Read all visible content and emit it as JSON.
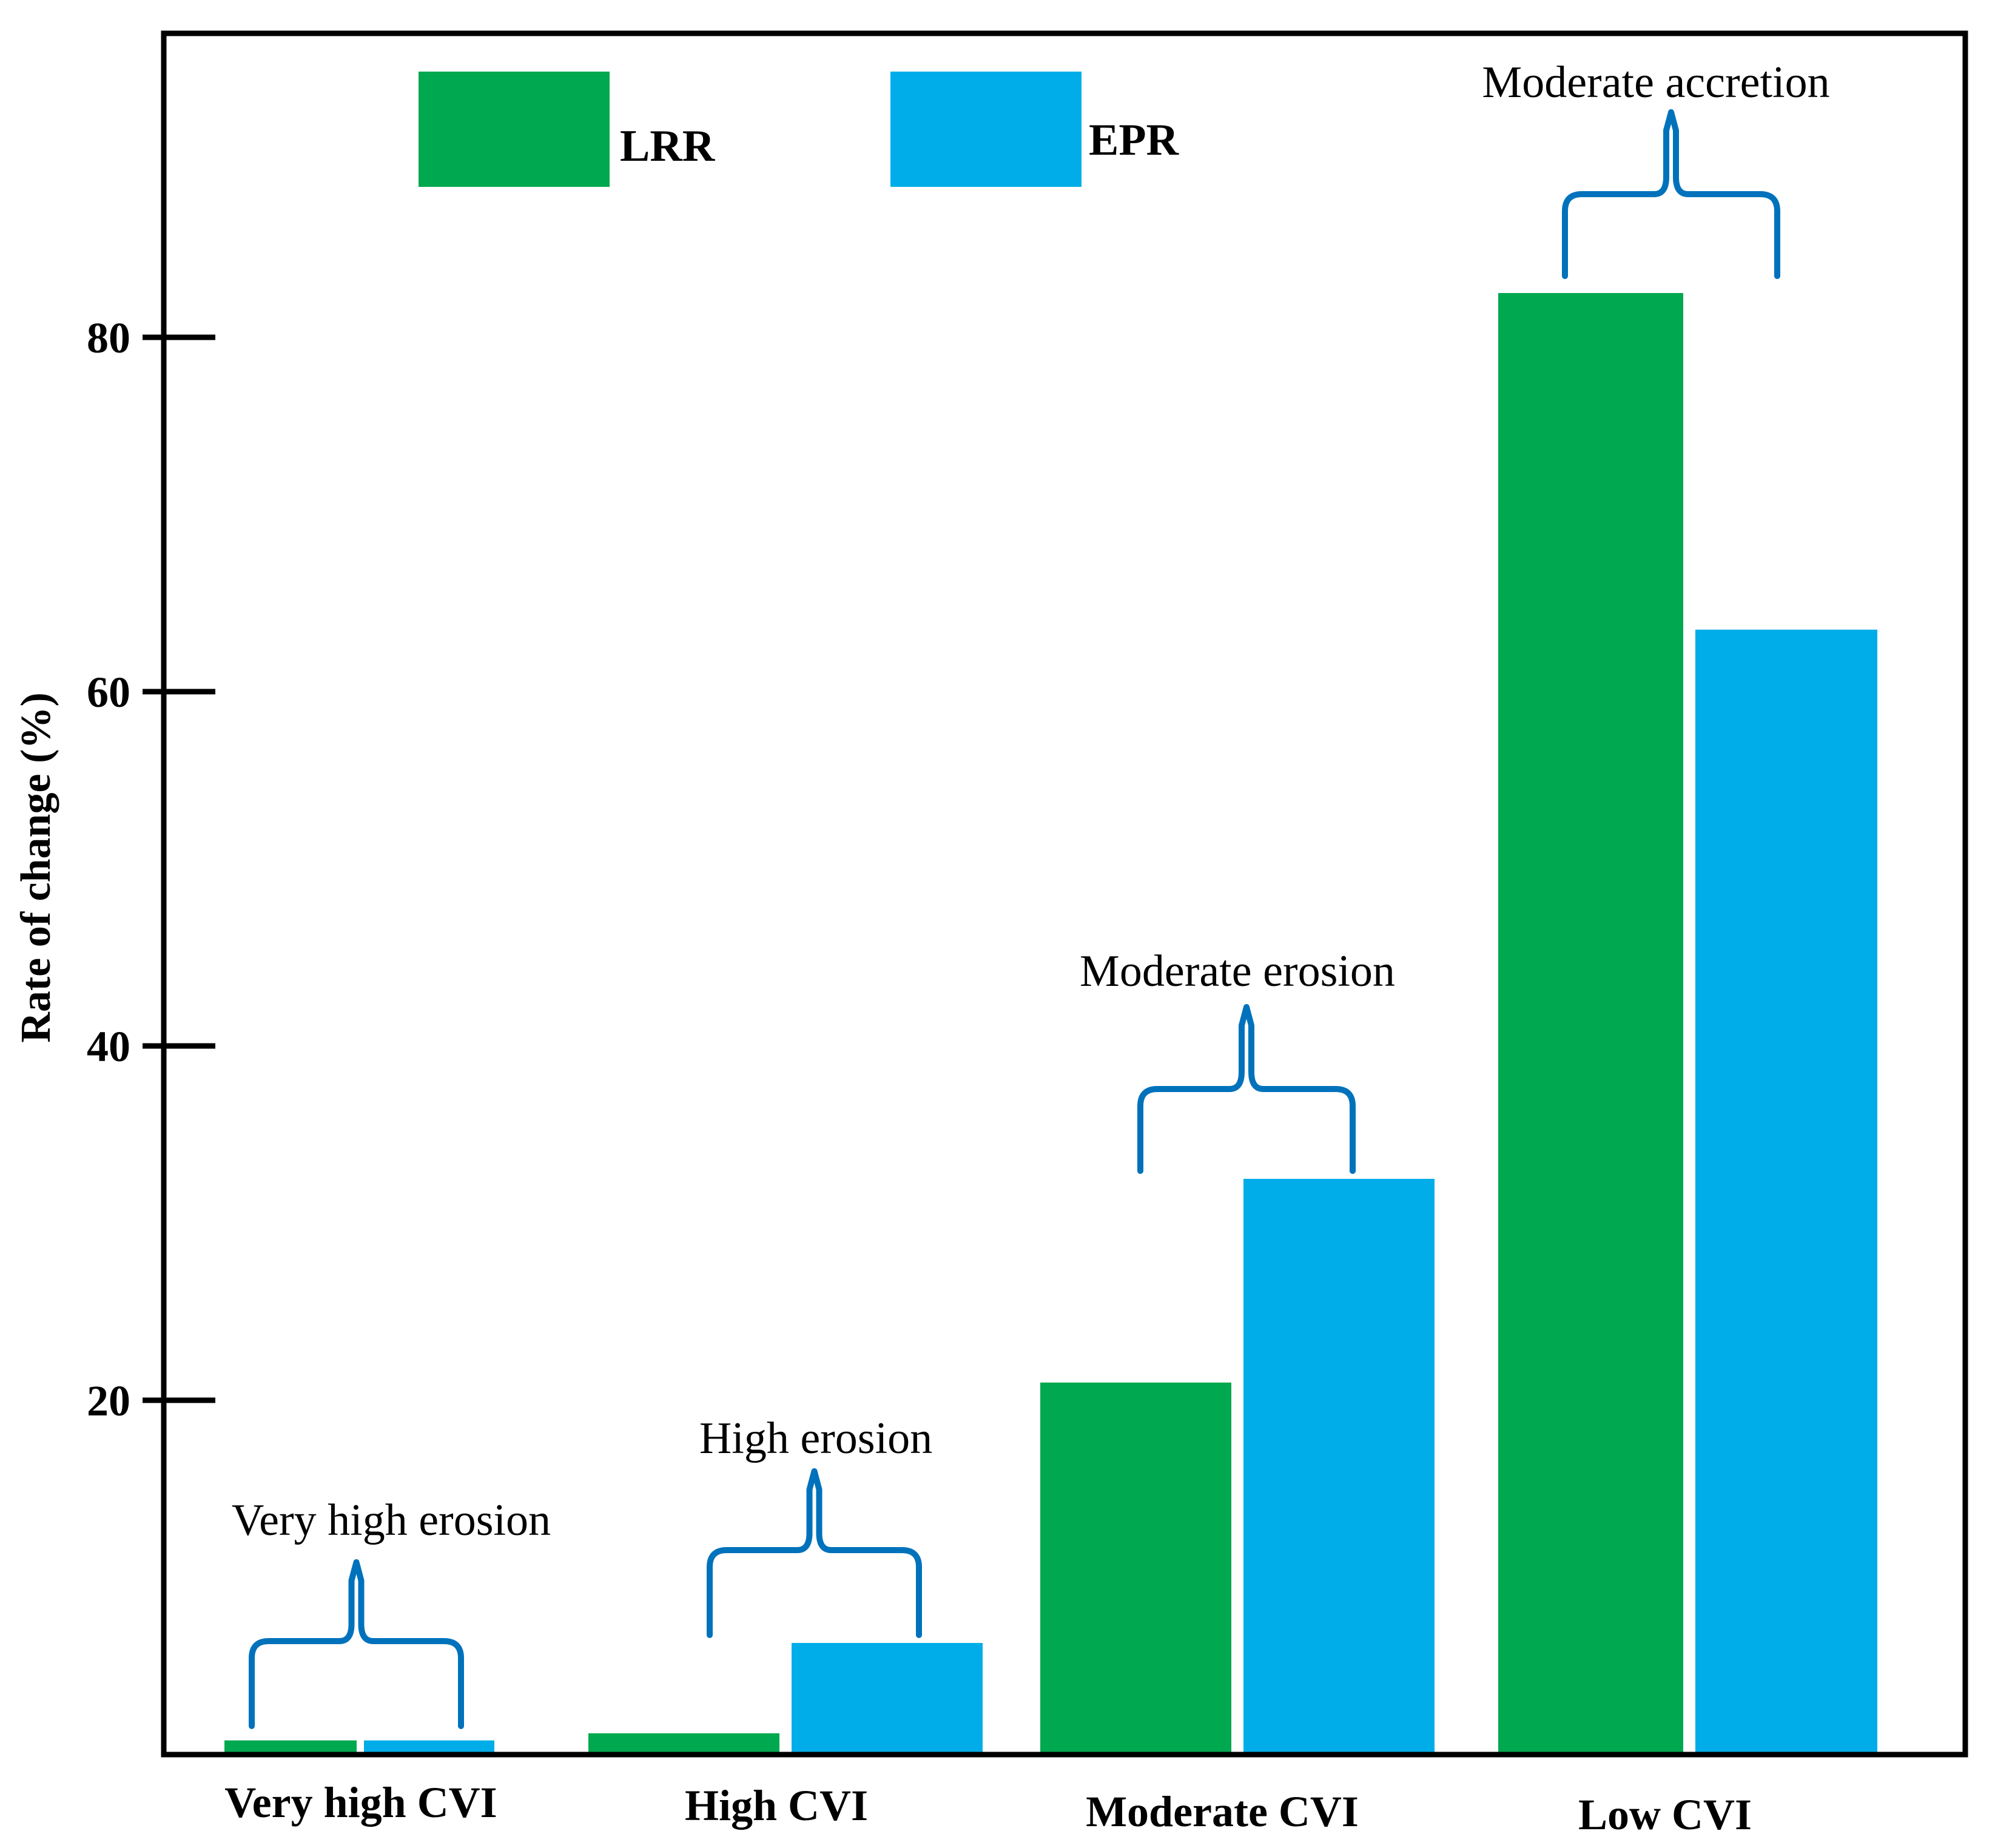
{
  "chart_data": {
    "type": "bar",
    "ylabel": "Rate of change (%)",
    "xlabel": "",
    "ylim": [
      0,
      95
    ],
    "yticks": [
      20,
      40,
      60,
      80
    ],
    "grid": false,
    "legend_position": "top",
    "categories": [
      "Very high CVI",
      "High CVI",
      "Moderate CVI",
      "Low CVI"
    ],
    "series": [
      {
        "name": "LRR",
        "color": "#00A84F",
        "values": [
          0.8,
          1.2,
          21,
          82.5
        ]
      },
      {
        "name": "EPR",
        "color": "#00ADE8",
        "values": [
          0.8,
          6.3,
          32.5,
          63.5
        ]
      }
    ],
    "annotations": [
      {
        "category": "Very high CVI",
        "text": "Very high erosion"
      },
      {
        "category": "High CVI",
        "text": "High erosion"
      },
      {
        "category": "Moderate CVI",
        "text": "Moderate erosion"
      },
      {
        "category": "Low CVI",
        "text": "Moderate accretion"
      }
    ],
    "brace_color": "#0072BC"
  }
}
